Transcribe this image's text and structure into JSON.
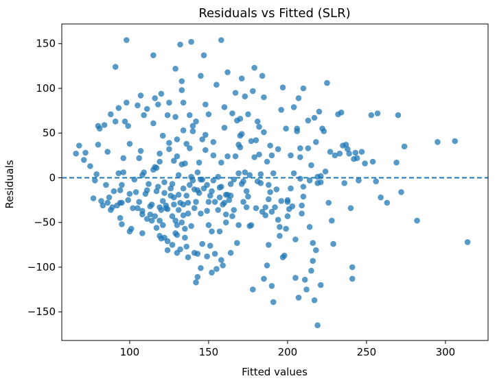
{
  "chart_data": {
    "type": "scatter",
    "title": "Residuals vs Fitted (SLR)",
    "xlabel": "Fitted values",
    "ylabel": "Residuals",
    "xlim": [
      57,
      327
    ],
    "ylim": [
      -182,
      172
    ],
    "xticks": [
      100,
      150,
      200,
      250,
      300
    ],
    "xtick_labels": [
      "100",
      "150",
      "200",
      "250",
      "300"
    ],
    "yticks": [
      -150,
      -100,
      -50,
      0,
      50,
      100,
      150
    ],
    "ytick_labels": [
      "−150",
      "−100",
      "−50",
      "0",
      "50",
      "100",
      "150"
    ],
    "reference_line": {
      "y": 0,
      "style": "dashed",
      "color": "#1f77b4"
    },
    "marker_color": "#1f77b4",
    "grid": false,
    "points": [
      [
        66,
        27
      ],
      [
        68,
        36
      ],
      [
        71,
        20
      ],
      [
        72,
        28
      ],
      [
        75,
        13
      ],
      [
        77,
        -23
      ],
      [
        78,
        -3
      ],
      [
        79,
        4
      ],
      [
        80,
        37
      ],
      [
        80,
        58
      ],
      [
        81,
        55
      ],
      [
        82,
        -26
      ],
      [
        83,
        -31
      ],
      [
        84,
        59
      ],
      [
        85,
        -8
      ],
      [
        86,
        29
      ],
      [
        86,
        -28
      ],
      [
        87,
        -22
      ],
      [
        88,
        -36
      ],
      [
        88,
        71
      ],
      [
        89,
        -33
      ],
      [
        90,
        -15
      ],
      [
        91,
        63
      ],
      [
        91,
        124
      ],
      [
        92,
        -31
      ],
      [
        93,
        5
      ],
      [
        93,
        78
      ],
      [
        94,
        -14
      ],
      [
        94,
        -45
      ],
      [
        94,
        -28
      ],
      [
        95,
        -8
      ],
      [
        95,
        -52
      ],
      [
        95,
        -28
      ],
      [
        96,
        22
      ],
      [
        96,
        6
      ],
      [
        97,
        63
      ],
      [
        98,
        154
      ],
      [
        98,
        84
      ],
      [
        99,
        58
      ],
      [
        99,
        -25
      ],
      [
        100,
        -60
      ],
      [
        100,
        -18
      ],
      [
        100,
        38
      ],
      [
        101,
        -57
      ],
      [
        102,
        -34
      ],
      [
        103,
        -2
      ],
      [
        104,
        -16
      ],
      [
        105,
        81
      ],
      [
        105,
        -34
      ],
      [
        106,
        -27
      ],
      [
        106,
        22
      ],
      [
        107,
        30
      ],
      [
        107,
        92
      ],
      [
        108,
        -37
      ],
      [
        108,
        -41
      ],
      [
        108,
        -62
      ],
      [
        108,
        3
      ],
      [
        109,
        6
      ],
      [
        109,
        70
      ],
      [
        110,
        -18
      ],
      [
        111,
        -46
      ],
      [
        111,
        -14
      ],
      [
        111,
        77
      ],
      [
        112,
        -7
      ],
      [
        113,
        -32
      ],
      [
        113,
        -41
      ],
      [
        114,
        -30
      ],
      [
        114,
        -48
      ],
      [
        115,
        9
      ],
      [
        115,
        137
      ],
      [
        115,
        61
      ],
      [
        116,
        12
      ],
      [
        116,
        89
      ],
      [
        116,
        -43
      ],
      [
        117,
        -56
      ],
      [
        117,
        11
      ],
      [
        117,
        -15
      ],
      [
        118,
        -10
      ],
      [
        118,
        82
      ],
      [
        119,
        18
      ],
      [
        119,
        -33
      ],
      [
        119,
        -65
      ],
      [
        119,
        27
      ],
      [
        119,
        -48
      ],
      [
        120,
        -36
      ],
      [
        120,
        94
      ],
      [
        120,
        -68
      ],
      [
        121,
        47
      ],
      [
        121,
        -26
      ],
      [
        121,
        -53
      ],
      [
        122,
        -67
      ],
      [
        122,
        -17
      ],
      [
        122,
        -5
      ],
      [
        123,
        -34
      ],
      [
        123,
        -31
      ],
      [
        124,
        70
      ],
      [
        124,
        -35
      ],
      [
        124,
        -81
      ],
      [
        124,
        -71
      ],
      [
        125,
        39
      ],
      [
        125,
        32
      ],
      [
        125,
        84
      ],
      [
        126,
        -12
      ],
      [
        126,
        -20
      ],
      [
        127,
        -75
      ],
      [
        127,
        -43
      ],
      [
        127,
        -7
      ],
      [
        128,
        -30
      ],
      [
        128,
        -22
      ],
      [
        128,
        19
      ],
      [
        129,
        -48
      ],
      [
        129,
        122
      ],
      [
        129,
        68
      ],
      [
        129,
        -62
      ],
      [
        130,
        43
      ],
      [
        130,
        -53
      ],
      [
        130,
        -64
      ],
      [
        130,
        -84
      ],
      [
        130,
        24
      ],
      [
        131,
        -36
      ],
      [
        131,
        3
      ],
      [
        131,
        -19
      ],
      [
        132,
        -80
      ],
      [
        132,
        -28
      ],
      [
        132,
        149
      ],
      [
        133,
        15
      ],
      [
        133,
        108
      ],
      [
        133,
        98
      ],
      [
        133,
        -50
      ],
      [
        134,
        84
      ],
      [
        134,
        -30
      ],
      [
        134,
        -42
      ],
      [
        134,
        -12
      ],
      [
        134,
        53
      ],
      [
        135,
        -57
      ],
      [
        135,
        16
      ],
      [
        135,
        -67
      ],
      [
        136,
        -20
      ],
      [
        136,
        38
      ],
      [
        136,
        -77
      ],
      [
        137,
        -28
      ],
      [
        137,
        -89
      ],
      [
        137,
        -40
      ],
      [
        138,
        33
      ],
      [
        138,
        70
      ],
      [
        138,
        -8
      ],
      [
        139,
        152
      ],
      [
        139,
        -54
      ],
      [
        139,
        1
      ],
      [
        140,
        58
      ],
      [
        140,
        52
      ],
      [
        140,
        -3
      ],
      [
        141,
        -13
      ],
      [
        141,
        -34
      ],
      [
        141,
        -84
      ],
      [
        142,
        63
      ],
      [
        142,
        -27
      ],
      [
        142,
        -117
      ],
      [
        143,
        -111
      ],
      [
        143,
        -85
      ],
      [
        143,
        -14
      ],
      [
        143,
        6
      ],
      [
        144,
        17
      ],
      [
        144,
        -17
      ],
      [
        145,
        -101
      ],
      [
        145,
        114
      ],
      [
        145,
        -40
      ],
      [
        145,
        -2
      ],
      [
        146,
        -2
      ],
      [
        146,
        -74
      ],
      [
        146,
        43
      ],
      [
        147,
        137
      ],
      [
        147,
        -12
      ],
      [
        148,
        31
      ],
      [
        148,
        48
      ],
      [
        148,
        82
      ],
      [
        149,
        -8
      ],
      [
        149,
        -37
      ],
      [
        149,
        -88
      ],
      [
        150,
        71
      ],
      [
        150,
        -53
      ],
      [
        150,
        -27
      ],
      [
        151,
        -76
      ],
      [
        151,
        -20
      ],
      [
        152,
        -15
      ],
      [
        152,
        -60
      ],
      [
        152,
        -106
      ],
      [
        153,
        25
      ],
      [
        153,
        -3
      ],
      [
        153,
        40
      ],
      [
        154,
        -27
      ],
      [
        154,
        -85
      ],
      [
        155,
        104
      ],
      [
        155,
        -102
      ],
      [
        156,
        -36
      ],
      [
        156,
        1
      ],
      [
        157,
        -11
      ],
      [
        157,
        -60
      ],
      [
        157,
        -22
      ],
      [
        158,
        -92
      ],
      [
        158,
        154
      ],
      [
        158,
        -10
      ],
      [
        158,
        17
      ],
      [
        159,
        -30
      ],
      [
        159,
        -98
      ],
      [
        160,
        -28
      ],
      [
        160,
        56
      ],
      [
        160,
        79
      ],
      [
        161,
        -50
      ],
      [
        161,
        -41
      ],
      [
        161,
        -19
      ],
      [
        162,
        24
      ],
      [
        162,
        118
      ],
      [
        162,
        -19
      ],
      [
        163,
        -25
      ],
      [
        164,
        -20
      ],
      [
        164,
        -7
      ],
      [
        164,
        -84
      ],
      [
        165,
        72
      ],
      [
        165,
        -43
      ],
      [
        166,
        -2
      ],
      [
        166,
        -36
      ],
      [
        167,
        95
      ],
      [
        167,
        24
      ],
      [
        168,
        64
      ],
      [
        168,
        -73
      ],
      [
        169,
        5
      ],
      [
        169,
        -53
      ],
      [
        169,
        37
      ],
      [
        170,
        66
      ],
      [
        170,
        47
      ],
      [
        170,
        34
      ],
      [
        171,
        -7
      ],
      [
        171,
        111
      ],
      [
        171,
        49
      ],
      [
        172,
        -4
      ],
      [
        172,
        -27
      ],
      [
        173,
        6
      ],
      [
        173,
        91
      ],
      [
        174,
        -15
      ],
      [
        174,
        -33
      ],
      [
        175,
        -21
      ],
      [
        175,
        71
      ],
      [
        176,
        -54
      ],
      [
        176,
        3
      ],
      [
        177,
        -53
      ],
      [
        177,
        41
      ],
      [
        178,
        97
      ],
      [
        178,
        -125
      ],
      [
        179,
        123
      ],
      [
        179,
        23
      ],
      [
        180,
        -34
      ],
      [
        180,
        42
      ],
      [
        181,
        63
      ],
      [
        181,
        -4
      ],
      [
        182,
        26
      ],
      [
        182,
        57
      ],
      [
        183,
        4
      ],
      [
        183,
        -6
      ],
      [
        184,
        -38
      ],
      [
        184,
        114
      ],
      [
        185,
        90
      ],
      [
        185,
        51
      ],
      [
        185,
        -113
      ],
      [
        186,
        -33
      ],
      [
        186,
        -42
      ],
      [
        187,
        18
      ],
      [
        187,
        -98
      ],
      [
        188,
        -75
      ],
      [
        188,
        -24
      ],
      [
        188,
        -8
      ],
      [
        189,
        -16
      ],
      [
        189,
        36
      ],
      [
        190,
        -121
      ],
      [
        190,
        -38
      ],
      [
        190,
        25
      ],
      [
        191,
        -139
      ],
      [
        191,
        5
      ],
      [
        192,
        -33
      ],
      [
        193,
        -13
      ],
      [
        194,
        -47
      ],
      [
        194,
        32
      ],
      [
        195,
        -55
      ],
      [
        195,
        -65
      ],
      [
        196,
        -26
      ],
      [
        196,
        76
      ],
      [
        197,
        101
      ],
      [
        197,
        -89
      ],
      [
        198,
        -87
      ],
      [
        199,
        -57
      ],
      [
        199,
        55
      ],
      [
        200,
        -27
      ],
      [
        200,
        -25
      ],
      [
        200,
        -43
      ],
      [
        201,
        -35
      ],
      [
        202,
        -12
      ],
      [
        202,
        25
      ],
      [
        203,
        -32
      ],
      [
        204,
        5
      ],
      [
        204,
        79
      ],
      [
        205,
        -112
      ],
      [
        205,
        -69
      ],
      [
        206,
        52
      ],
      [
        206,
        55
      ],
      [
        207,
        -134
      ],
      [
        207,
        89
      ],
      [
        208,
        23
      ],
      [
        208,
        33
      ],
      [
        208,
        -1
      ],
      [
        209,
        -31
      ],
      [
        209,
        -40
      ],
      [
        210,
        -10
      ],
      [
        210,
        -21
      ],
      [
        210,
        100
      ],
      [
        211,
        -114
      ],
      [
        212,
        -125
      ],
      [
        213,
        64
      ],
      [
        213,
        33
      ],
      [
        214,
        -55
      ],
      [
        214,
        -3
      ],
      [
        215,
        -104
      ],
      [
        215,
        14
      ],
      [
        216,
        -73
      ],
      [
        216,
        -93
      ],
      [
        217,
        -137
      ],
      [
        217,
        67
      ],
      [
        218,
        40
      ],
      [
        218,
        -81
      ],
      [
        219,
        -6
      ],
      [
        219,
        1
      ],
      [
        219,
        -165
      ],
      [
        220,
        74
      ],
      [
        221,
        -120
      ],
      [
        221,
        -5
      ],
      [
        221,
        2
      ],
      [
        222,
        55
      ],
      [
        223,
        52
      ],
      [
        224,
        7
      ],
      [
        225,
        106
      ],
      [
        226,
        -28
      ],
      [
        227,
        29
      ],
      [
        228,
        -48
      ],
      [
        229,
        -74
      ],
      [
        230,
        25
      ],
      [
        232,
        71
      ],
      [
        233,
        27
      ],
      [
        234,
        73
      ],
      [
        235,
        36
      ],
      [
        236,
        -6
      ],
      [
        237,
        37
      ],
      [
        238,
        32
      ],
      [
        239,
        27
      ],
      [
        240,
        -34
      ],
      [
        241,
        -100
      ],
      [
        241,
        -113
      ],
      [
        242,
        21
      ],
      [
        243,
        28
      ],
      [
        244,
        22
      ],
      [
        245,
        -3
      ],
      [
        247,
        29
      ],
      [
        249,
        16
      ],
      [
        253,
        70
      ],
      [
        254,
        18
      ],
      [
        256,
        -4
      ],
      [
        257,
        72
      ],
      [
        259,
        -22
      ],
      [
        263,
        -28
      ],
      [
        269,
        17
      ],
      [
        270,
        70
      ],
      [
        272,
        -16
      ],
      [
        274,
        35
      ],
      [
        282,
        -48
      ],
      [
        295,
        40
      ],
      [
        306,
        41
      ],
      [
        314,
        -72
      ]
    ]
  }
}
